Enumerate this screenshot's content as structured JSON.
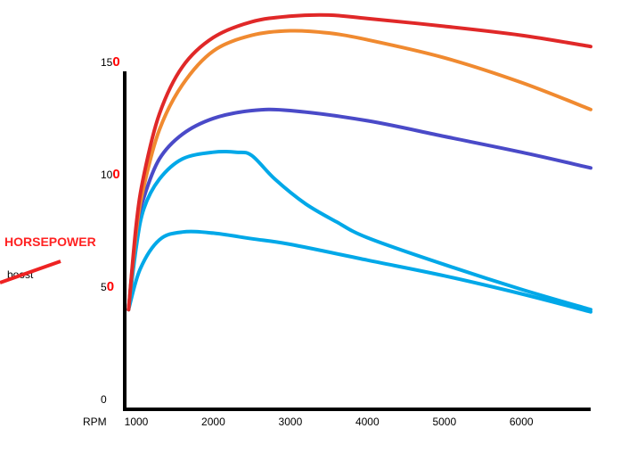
{
  "chart_data": {
    "type": "line",
    "title": "",
    "xlabel": "RPM",
    "ylabel": "HORSEPOWER",
    "annotation": "boost",
    "xlim": [
      850,
      6900
    ],
    "ylim": [
      0,
      165
    ],
    "x_ticks": [
      "1000",
      "2000",
      "3000",
      "4000",
      "5000",
      "6000"
    ],
    "y_ticks": [
      {
        "value": 0,
        "prefix": "0",
        "suffix": ""
      },
      {
        "value": 50,
        "prefix": "5",
        "suffix": "0"
      },
      {
        "value": 100,
        "prefix": "10",
        "suffix": "0"
      },
      {
        "value": 150,
        "prefix": "15",
        "suffix": "0"
      }
    ],
    "grid": false,
    "series": [
      {
        "color": "#00a8e8",
        "x": [
          900,
          1050,
          1300,
          1600,
          2000,
          2500,
          3000,
          4000,
          5000,
          6000,
          6900
        ],
        "y": [
          40,
          58,
          71,
          74.5,
          74,
          71.5,
          69,
          62,
          55,
          47,
          39
        ]
      },
      {
        "color": "#00a8e8",
        "x": [
          900,
          1000,
          1100,
          1300,
          1600,
          2000,
          2300,
          2500,
          2800,
          3200,
          3600,
          4000,
          5000,
          6000,
          6900
        ],
        "y": [
          40,
          68,
          85,
          98,
          107,
          110,
          110,
          108.5,
          98,
          87,
          79,
          72,
          60,
          49,
          40
        ]
      },
      {
        "color": "#4a4ac8",
        "x": [
          900,
          1000,
          1100,
          1300,
          1600,
          2000,
          2500,
          3000,
          4000,
          5000,
          6000,
          6900
        ],
        "y": [
          40,
          75,
          90,
          107,
          118,
          125,
          128.5,
          128.5,
          124,
          117,
          110,
          103
        ]
      },
      {
        "color": "#f08a30",
        "x": [
          900,
          1000,
          1100,
          1300,
          1600,
          2000,
          2500,
          3000,
          3500,
          4000,
          5000,
          6000,
          6900
        ],
        "y": [
          40,
          75,
          95,
          120,
          140,
          155,
          162,
          164,
          163,
          160,
          152,
          141,
          129
        ]
      },
      {
        "color": "#e02828",
        "x": [
          900,
          1000,
          1100,
          1300,
          1600,
          2000,
          2500,
          3000,
          3500,
          4000,
          5000,
          6000,
          6900
        ],
        "y": [
          40,
          78,
          100,
          127,
          148,
          161,
          168,
          170.5,
          171,
          169.5,
          166,
          162,
          157
        ]
      }
    ],
    "colors": {
      "axis": "#000000",
      "tick_accent": "#ff0000",
      "ylabel": "#ff2222",
      "slash": "#ee2222"
    }
  }
}
